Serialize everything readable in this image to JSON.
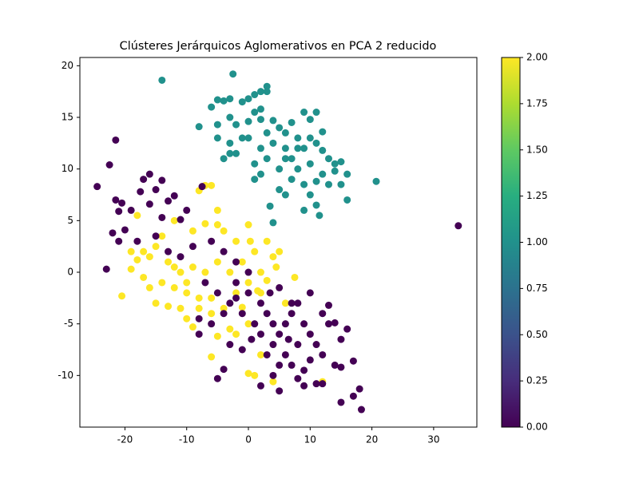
{
  "chart_data": {
    "type": "scatter",
    "title": "Clústeres Jerárquicos Aglomerativos en PCA 2 reducido",
    "colormap": "viridis",
    "series": [
      {
        "c": 1,
        "x": [
          -14,
          -2.5,
          -6,
          -5,
          -4,
          -3,
          -1,
          0,
          1,
          2,
          3,
          3,
          1,
          2,
          -3,
          -2,
          -5,
          -8,
          0,
          2,
          4,
          5,
          6,
          7,
          8,
          9,
          10,
          11,
          12,
          11,
          9,
          7,
          8,
          10,
          12,
          13,
          14,
          15,
          14,
          12,
          11,
          13,
          15,
          16,
          20.7,
          16,
          11,
          11.5,
          9,
          6,
          5,
          3.5,
          4,
          2,
          1,
          3,
          5,
          7,
          9,
          10,
          6,
          4,
          2,
          0,
          -3,
          -4,
          -2,
          -1,
          -5,
          6,
          8,
          10,
          3,
          1,
          -3
        ],
        "values": [
          18.6,
          19.2,
          16,
          16.7,
          16.6,
          16.8,
          16.5,
          16.8,
          17.2,
          17.5,
          18,
          17.5,
          15.5,
          15.8,
          15,
          14.3,
          14.3,
          14.1,
          14.6,
          14.8,
          14.7,
          14,
          13.5,
          14.5,
          13,
          15.5,
          14.8,
          15.5,
          13.6,
          12.5,
          12,
          11,
          10,
          10.5,
          11.8,
          11,
          10.5,
          10.7,
          9.8,
          9.5,
          8.8,
          8.5,
          8.5,
          9.5,
          8.8,
          7,
          6.5,
          5.5,
          6,
          7.5,
          8,
          6.4,
          4.8,
          9.5,
          9,
          11,
          10,
          9,
          8.5,
          7.5,
          12,
          12.5,
          12,
          13,
          12.5,
          11,
          11.5,
          13,
          13,
          11,
          12,
          13,
          13.5,
          10.5,
          11.5
        ]
      },
      {
        "c": 2,
        "x": [
          -7,
          -6,
          -8,
          -5,
          -18,
          -12,
          -9,
          -7,
          -5,
          -14,
          -15,
          -17,
          -19,
          -18,
          -16,
          -13,
          -19,
          -17,
          -16,
          -14,
          -12,
          -10,
          -8,
          -20.5,
          -15,
          -13,
          -11,
          -10,
          -9,
          -8,
          -6,
          -4,
          -2,
          0,
          2,
          -3,
          -1,
          1,
          3,
          4,
          5,
          -2,
          -4,
          0,
          0.3,
          1.5,
          4.5,
          7.5,
          2,
          0,
          1,
          -5,
          -2,
          0,
          4,
          12,
          6,
          -6,
          -3,
          -10,
          -7,
          -5,
          -9,
          -11,
          -12,
          -6,
          2,
          3,
          -1
        ],
        "values": [
          8.4,
          8.4,
          7.9,
          6,
          5.5,
          5,
          4,
          4.7,
          4.6,
          3.5,
          2.5,
          2,
          2,
          1.2,
          1.5,
          1,
          0.3,
          -0.5,
          -1.5,
          -1,
          -1.5,
          -2,
          -2.5,
          -2.3,
          -3,
          -3.3,
          -3.5,
          -4.5,
          -5.3,
          -3.5,
          -2.5,
          -3.5,
          -2,
          -1,
          -2,
          0,
          1,
          2,
          3,
          1.5,
          2,
          3,
          4,
          4.6,
          3,
          -1.8,
          0.5,
          -0.5,
          -8,
          -9.8,
          -10,
          -6.2,
          -6,
          -5,
          -10.6,
          -10.6,
          -3,
          -8.2,
          -5.5,
          -1,
          0,
          1,
          0.5,
          0,
          0.5,
          -4,
          0,
          -0.8,
          -3.4
        ]
      },
      {
        "c": 0,
        "x": [
          -24.5,
          -21.5,
          -22.5,
          -17,
          -16,
          -14,
          -15,
          -17.5,
          -21.5,
          -20.5,
          -19,
          -21,
          -16,
          -13,
          -12,
          -11,
          -7.5,
          -14,
          -10,
          -22,
          -20,
          -21,
          -23,
          -18,
          -15,
          -13,
          -11,
          -9,
          -6,
          -4,
          -2,
          0,
          34,
          -2,
          0,
          2,
          3,
          4,
          5,
          6,
          7,
          8,
          9,
          10,
          11,
          12,
          8,
          6,
          5,
          4,
          2,
          1,
          -1,
          -3,
          -5,
          -7,
          -4,
          -6,
          -8,
          -3,
          -1,
          3,
          7,
          9,
          12,
          14,
          15,
          17,
          18,
          17,
          18.3,
          15,
          11,
          9,
          5,
          2,
          -4,
          -5,
          -8,
          14,
          16,
          13,
          15,
          12,
          10,
          5,
          7,
          13,
          3.5,
          -2,
          0.5,
          6.5,
          10,
          4,
          8
        ],
        "values": [
          8.3,
          12.8,
          10.4,
          9,
          9.5,
          8.9,
          8,
          7.8,
          7,
          6.7,
          6,
          5.9,
          6.6,
          6.9,
          7.4,
          5.1,
          8.3,
          5.3,
          6,
          3.8,
          4.1,
          3,
          0.3,
          3,
          3.5,
          2,
          1.5,
          2.5,
          3,
          2,
          1,
          0,
          4.5,
          -1,
          -2,
          -3,
          -4,
          -5,
          -6,
          -5,
          -4,
          -3,
          -5,
          -6,
          -7,
          -8,
          -7,
          -8,
          -9,
          -7,
          -6,
          -5,
          -4,
          -3,
          -2,
          -1,
          -4,
          -5,
          -4.5,
          -7,
          -7.5,
          -8,
          -9,
          -9.5,
          -10.8,
          -9,
          -9.2,
          -8.6,
          -11.3,
          -12,
          -13.3,
          -12.6,
          -10.8,
          -11,
          -11.5,
          -11,
          -9.4,
          -10.3,
          -6,
          -4.9,
          -5.5,
          -5,
          -6.5,
          -4,
          -2,
          -1.5,
          -3,
          -3.2,
          -2,
          -2.5,
          -6.5,
          -6.5,
          -8.5,
          -10,
          -10.3
        ]
      }
    ],
    "xlim": [
      -27.3,
      37.0
    ],
    "xticks": [
      -20,
      -10,
      0,
      10,
      20,
      30
    ],
    "ylim": [
      -15.0,
      20.8
    ],
    "yticks": [
      -10,
      -5,
      0,
      5,
      10,
      15,
      20
    ],
    "clim": [
      0,
      2
    ],
    "cticks": [
      {
        "value": 0,
        "label": "0.00"
      },
      {
        "value": 0.25,
        "label": "0.25"
      },
      {
        "value": 0.5,
        "label": "0.50"
      },
      {
        "value": 0.75,
        "label": "0.75"
      },
      {
        "value": 1,
        "label": "1.00"
      },
      {
        "value": 1.25,
        "label": "1.25"
      },
      {
        "value": 1.5,
        "label": "1.50"
      },
      {
        "value": 1.75,
        "label": "1.75"
      },
      {
        "value": 2,
        "label": "2.00"
      }
    ]
  }
}
